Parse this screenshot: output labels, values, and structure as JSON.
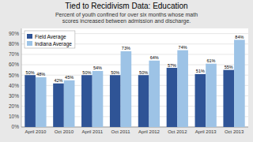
{
  "chart_data": {
    "type": "bar",
    "title": "Tied to Recidivism Data: Education",
    "subtitle": "Percent of youth confined for over six months whose math\nscores increased between admission and discharge.",
    "categories": [
      "April 2010",
      "Oct 2010",
      "April 2011",
      "Oct 2011",
      "April 2012",
      "Oct 2012",
      "April 2013",
      "Oct 2013"
    ],
    "series": [
      {
        "name": "Field Average",
        "color": "#2F5496",
        "values": [
          50,
          42,
          50,
          50,
          50,
          57,
          51,
          55
        ],
        "value_labels": [
          "50%",
          "42%",
          "50%",
          "50%",
          "50%",
          "57%",
          "51%",
          "55%"
        ]
      },
      {
        "name": "Indiana Average",
        "color": "#9DC3E6",
        "values": [
          48,
          45,
          54,
          73,
          64,
          74,
          61,
          84
        ],
        "value_labels": [
          "48%",
          "45%",
          "54%",
          "73%",
          "64%",
          "74%",
          "61%",
          "84%"
        ]
      }
    ],
    "ylim": [
      0,
      95
    ],
    "yticks": [
      {
        "value": 0,
        "label": "0%"
      },
      {
        "value": 10,
        "label": "10%"
      },
      {
        "value": 20,
        "label": "20%"
      },
      {
        "value": 30,
        "label": "30%"
      },
      {
        "value": 40,
        "label": "40%"
      },
      {
        "value": 50,
        "label": "50%"
      },
      {
        "value": 60,
        "label": "60%"
      },
      {
        "value": 70,
        "label": "70%"
      },
      {
        "value": 80,
        "label": "80%"
      },
      {
        "value": 90,
        "label": "90%"
      }
    ],
    "grid": true,
    "legend": "upper left",
    "data_labels": true
  }
}
